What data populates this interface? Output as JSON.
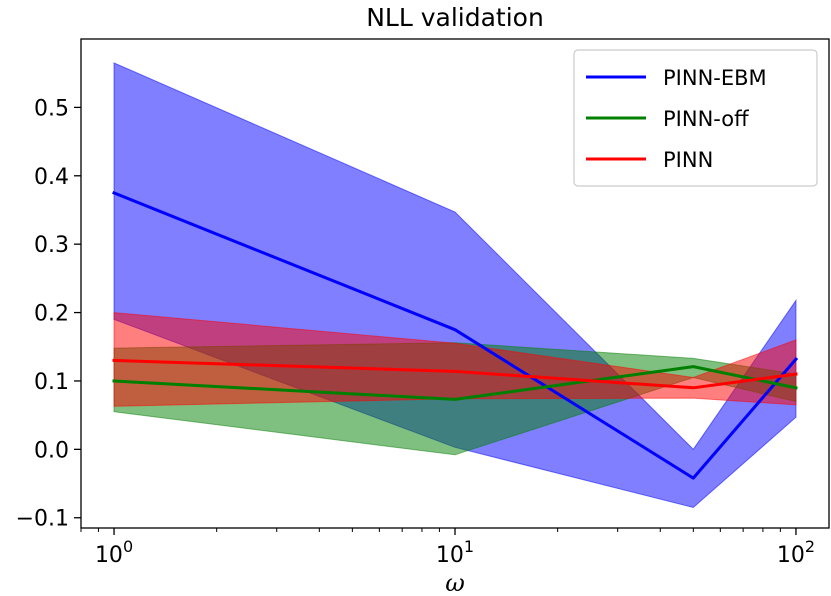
{
  "chart_data": {
    "type": "line",
    "title": "NLL validation",
    "xlabel": "ω",
    "ylabel": "",
    "xscale": "log",
    "xlim": [
      0.8,
      125
    ],
    "ylim": [
      -0.115,
      0.6
    ],
    "x_ticks": [
      {
        "value": 1,
        "base": "10",
        "exp": "0"
      },
      {
        "value": 10,
        "base": "10",
        "exp": "1"
      },
      {
        "value": 100,
        "base": "10",
        "exp": "2"
      }
    ],
    "y_ticks": [
      {
        "value": -0.1,
        "label": "−0.1"
      },
      {
        "value": 0.0,
        "label": "0.0"
      },
      {
        "value": 0.1,
        "label": "0.1"
      },
      {
        "value": 0.2,
        "label": "0.2"
      },
      {
        "value": 0.3,
        "label": "0.3"
      },
      {
        "value": 0.4,
        "label": "0.4"
      },
      {
        "value": 0.5,
        "label": "0.5"
      }
    ],
    "grid": false,
    "legend_position": "top-right",
    "x": [
      1,
      10,
      50,
      100
    ],
    "series": [
      {
        "name": "PINN-EBM",
        "color": "#0000ff",
        "values": [
          0.375,
          0.175,
          -0.042,
          0.132
        ],
        "lower": [
          0.19,
          0.003,
          -0.085,
          0.047
        ],
        "upper": [
          0.565,
          0.347,
          0.0,
          0.218
        ]
      },
      {
        "name": "PINN-off",
        "color": "#008000",
        "values": [
          0.1,
          0.073,
          0.121,
          0.09
        ],
        "lower": [
          0.055,
          -0.008,
          0.105,
          0.07
        ],
        "upper": [
          0.148,
          0.156,
          0.133,
          0.11
        ]
      },
      {
        "name": "PINN",
        "color": "#ff0000",
        "values": [
          0.13,
          0.114,
          0.09,
          0.11
        ],
        "lower": [
          0.063,
          0.074,
          0.075,
          0.065
        ],
        "upper": [
          0.2,
          0.155,
          0.105,
          0.16
        ]
      }
    ]
  }
}
